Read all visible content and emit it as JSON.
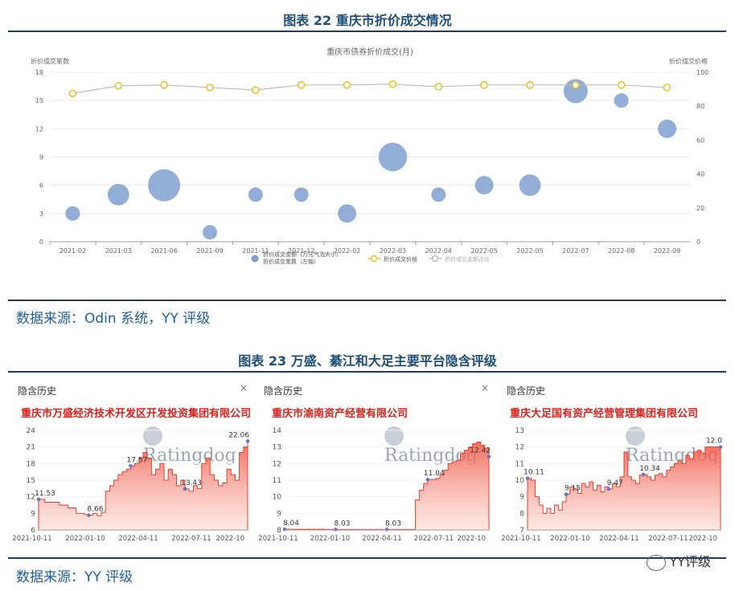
{
  "figure22": {
    "title": "图表  22  重庆市折价成交情况",
    "source": "数据来源：Odin 系统，YY 评级"
  },
  "figure23": {
    "title": "图表  23  万盛、綦江和大足主要平台隐含评级",
    "source": "数据来源：YY 评级"
  },
  "brand": {
    "text": "YY评级"
  },
  "chart_data": [
    {
      "type": "scatter",
      "title": "重庆市债券折价成交(月)",
      "ylabel": "折价成交笔数",
      "y2label": "折价成交价格",
      "ylim": [
        0,
        18
      ],
      "yticks": [
        0,
        3,
        6,
        9,
        12,
        15,
        18
      ],
      "y2lim": [
        0,
        100
      ],
      "y2ticks": [
        0,
        20,
        40,
        60,
        80,
        100
      ],
      "categories": [
        "2021-02",
        "2021-03",
        "2021-06",
        "2021-09",
        "2021-11",
        "2021-12",
        "2022-02",
        "2022-03",
        "2022-04",
        "2022-05",
        "2022-05",
        "2022-07",
        "2022-08",
        "2022-09"
      ],
      "series": [
        {
          "name": "折价成交金额（万元气泡大小）折价成交笔数（左轴）",
          "kind": "bubble",
          "color": "#7f9fcf",
          "values": [
            3,
            5,
            6,
            1,
            5,
            5,
            3,
            9,
            5,
            6,
            6,
            16,
            15,
            12
          ],
          "sizes": [
            1,
            3,
            8,
            1,
            1,
            1,
            2,
            6,
            1,
            2,
            3,
            4,
            1,
            2
          ]
        },
        {
          "name": "折价成交价格",
          "kind": "line",
          "color": "#e8c22a",
          "values": [
            87.5,
            92,
            92.5,
            91,
            89.5,
            92.5,
            92.5,
            93,
            91.5,
            92.5,
            92.5,
            92.5,
            92.5,
            91
          ]
        },
        {
          "name": "折价成交金额占比",
          "kind": "legend-only",
          "color": "#bbbbbb"
        }
      ],
      "legend": "bottom"
    },
    {
      "type": "area",
      "panel_title": "隐含历史",
      "company": "重庆市万盛经济技术开发区开发投资集团有限公司",
      "watermark": "Ratingdog",
      "x_ticks": [
        "2021-10-11",
        "2022-01-10",
        "2022-04-11",
        "2022-07-11",
        "2022-10"
      ],
      "ylim": [
        6,
        24
      ],
      "yticks": [
        6,
        9,
        12,
        15,
        18,
        21,
        24
      ],
      "series": [
        {
          "x": [
            0,
            0.03,
            0.08,
            0.1,
            0.14,
            0.18,
            0.22,
            0.24,
            0.26,
            0.28,
            0.3,
            0.32,
            0.34,
            0.36,
            0.38,
            0.4,
            0.42,
            0.44,
            0.46,
            0.48,
            0.5,
            0.52,
            0.54,
            0.56,
            0.58,
            0.6,
            0.62,
            0.64,
            0.66,
            0.68,
            0.7,
            0.72,
            0.74,
            0.76,
            0.78,
            0.8,
            0.82,
            0.84,
            0.86,
            0.88,
            0.9,
            0.92,
            0.94,
            0.96,
            0.98,
            1.0
          ],
          "values": [
            11.53,
            11,
            11,
            10.5,
            10,
            9,
            8.8,
            8.66,
            9,
            8.6,
            9.2,
            13,
            14,
            15,
            16,
            16.5,
            17,
            17.57,
            18,
            19,
            20,
            19,
            16,
            17,
            18,
            15,
            17,
            16,
            14,
            15,
            13.43,
            13,
            14,
            13.5,
            18,
            19,
            16,
            15,
            14,
            14.5,
            17,
            16,
            15,
            20,
            21,
            22.06
          ]
        }
      ],
      "labels": [
        {
          "text": "11.53",
          "x": 0.0,
          "y": 11.53
        },
        {
          "text": "8.66",
          "x": 0.24,
          "y": 8.66
        },
        {
          "text": "17.57",
          "x": 0.44,
          "y": 17.57
        },
        {
          "text": "13.43",
          "x": 0.7,
          "y": 13.43
        },
        {
          "text": "22.06",
          "x": 1.0,
          "y": 22.06
        }
      ]
    },
    {
      "type": "area",
      "panel_title": "隐含历史",
      "company": "重庆市渝南资产经营有限公司",
      "watermark": "Ratingdog",
      "x_ticks": [
        "2021-10-11",
        "2022-01-10",
        "2022-04-11",
        "2022-07-11",
        "2022-10"
      ],
      "ylim": [
        8,
        14
      ],
      "yticks": [
        8,
        9,
        10,
        11,
        12,
        13,
        14
      ],
      "series": [
        {
          "x": [
            0,
            0.1,
            0.2,
            0.3,
            0.4,
            0.5,
            0.58,
            0.6,
            0.62,
            0.64,
            0.66,
            0.68,
            0.7,
            0.72,
            0.74,
            0.76,
            0.78,
            0.8,
            0.82,
            0.84,
            0.86,
            0.88,
            0.9,
            0.92,
            0.94,
            0.96,
            0.98,
            1.0
          ],
          "values": [
            8.04,
            8.04,
            8.03,
            8.03,
            8.03,
            8.03,
            8.03,
            8.03,
            8.03,
            9.8,
            10.4,
            10.8,
            11.04,
            11.04,
            11.1,
            11.3,
            11.6,
            12,
            12.1,
            12.2,
            12.6,
            12.8,
            13,
            13.2,
            13.3,
            13.1,
            12.9,
            12.42
          ]
        }
      ],
      "labels": [
        {
          "text": "8.04",
          "x": 0.0,
          "y": 8.04
        },
        {
          "text": "8.03",
          "x": 0.25,
          "y": 8.03
        },
        {
          "text": "8.03",
          "x": 0.5,
          "y": 8.03
        },
        {
          "text": "11.04",
          "x": 0.7,
          "y": 11.04
        },
        {
          "text": "12.42",
          "x": 1.0,
          "y": 12.42
        }
      ]
    },
    {
      "type": "area",
      "panel_title": "隐含历史",
      "company": "重庆大足国有资产经营管理集团有限公司",
      "watermark": "Ratingdog",
      "x_ticks": [
        "2021-10-11",
        "2022-01-10",
        "2022-04-11",
        "2022-07-11",
        "2022-10"
      ],
      "ylim": [
        7,
        13
      ],
      "yticks": [
        7,
        8,
        9,
        10,
        11,
        12,
        13
      ],
      "series": [
        {
          "x": [
            0,
            0.02,
            0.04,
            0.06,
            0.08,
            0.1,
            0.12,
            0.14,
            0.16,
            0.18,
            0.2,
            0.22,
            0.24,
            0.26,
            0.28,
            0.3,
            0.32,
            0.34,
            0.36,
            0.38,
            0.4,
            0.42,
            0.44,
            0.46,
            0.48,
            0.5,
            0.52,
            0.54,
            0.56,
            0.58,
            0.6,
            0.62,
            0.64,
            0.66,
            0.68,
            0.7,
            0.72,
            0.74,
            0.76,
            0.78,
            0.8,
            0.82,
            0.84,
            0.86,
            0.88,
            0.9,
            0.92,
            0.94,
            0.96,
            0.98,
            1.0
          ],
          "values": [
            10.11,
            10,
            9,
            8.5,
            8,
            8.3,
            8,
            8.5,
            8.2,
            8.7,
            9.15,
            9.6,
            9.5,
            9.2,
            9.8,
            9.6,
            9.9,
            9.4,
            9.7,
            9.3,
            9.6,
            9.47,
            9.8,
            9.6,
            10.2,
            11.7,
            10.2,
            10,
            9.8,
            10.3,
            10.34,
            10.2,
            10,
            10.3,
            10.4,
            10.2,
            10.6,
            10.8,
            11,
            11.2,
            11,
            11.5,
            11.3,
            11.7,
            11.8,
            11.6,
            12,
            12,
            12,
            12,
            12
          ]
        }
      ],
      "labels": [
        {
          "text": "10.11",
          "x": 0.0,
          "y": 10.11
        },
        {
          "text": "9.15",
          "x": 0.2,
          "y": 9.15
        },
        {
          "text": "9.47",
          "x": 0.42,
          "y": 9.47
        },
        {
          "text": "10.34",
          "x": 0.6,
          "y": 10.34
        },
        {
          "text": "12.0",
          "x": 1.0,
          "y": 12.0
        }
      ]
    }
  ]
}
